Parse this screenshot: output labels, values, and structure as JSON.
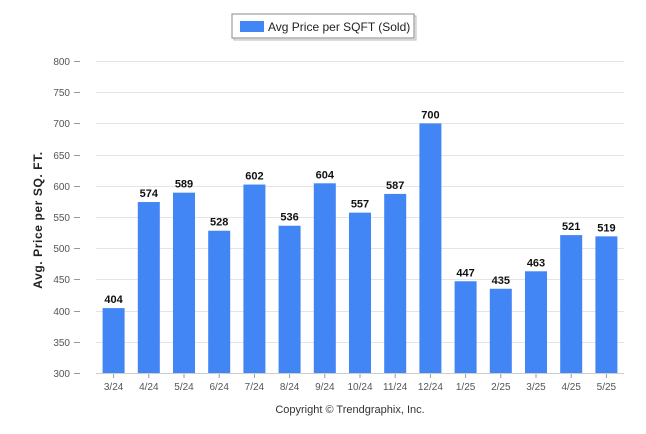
{
  "chart_data": {
    "type": "bar",
    "title": "",
    "xlabel": "",
    "ylabel": "Avg. Price per SQ. FT.",
    "categories": [
      "3/24",
      "4/24",
      "5/24",
      "6/24",
      "7/24",
      "8/24",
      "9/24",
      "10/24",
      "11/24",
      "12/24",
      "1/25",
      "2/25",
      "3/25",
      "4/25",
      "5/25"
    ],
    "series": [
      {
        "name": "Avg Price per SQFT (Sold)",
        "values": [
          404,
          574,
          589,
          528,
          602,
          536,
          604,
          557,
          587,
          700,
          447,
          435,
          463,
          521,
          519
        ],
        "color": "#4285f4"
      }
    ],
    "ylim": [
      300,
      800
    ],
    "yticks": [
      300,
      350,
      400,
      450,
      500,
      550,
      600,
      650,
      700,
      750,
      800
    ],
    "grid": true,
    "legend_position": "top-center",
    "data_labels": true
  },
  "copyright": "Copyright © Trendgraphix, Inc."
}
